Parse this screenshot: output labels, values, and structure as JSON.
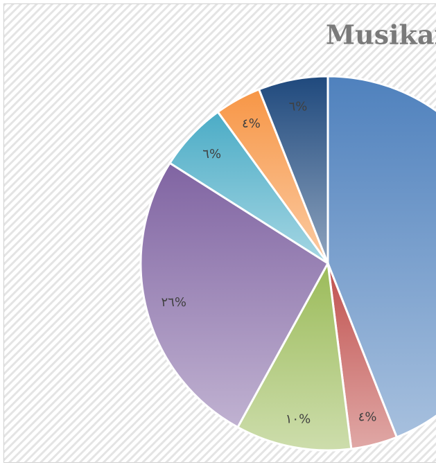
{
  "chart_data": {
    "type": "pie",
    "title": "Musikar",
    "values": [
      44,
      4,
      10,
      26,
      6,
      4,
      6
    ],
    "value_labels": [
      null,
      "٤%",
      "١٠%",
      "٢٦%",
      "٦%",
      "٤%",
      "٦%"
    ],
    "colors": [
      "#4f81bd",
      "#c0504d",
      "#9bbb59",
      "#8064a2",
      "#4bacc6",
      "#f79646",
      "#1f497d"
    ],
    "start_angle": 0,
    "direction": "clockwise"
  }
}
